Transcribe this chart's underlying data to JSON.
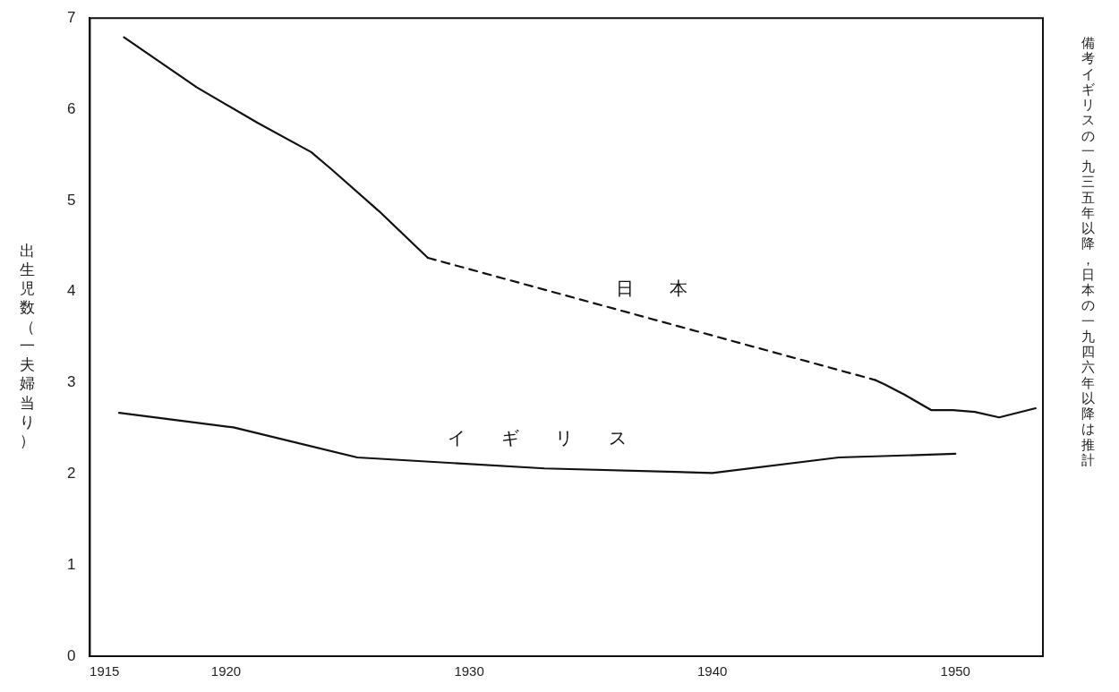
{
  "chart_data": {
    "type": "line",
    "ylabel": "出生児数（一夫婦当り）",
    "series": [
      {
        "color": "#111111",
        "line_style": "solid",
        "x": [
          1915.8,
          1918.8,
          1921.3,
          1923.5,
          1924.3,
          1926.3,
          1928.3
        ],
        "values": [
          6.79,
          6.24,
          5.85,
          5.53,
          5.35,
          4.88,
          4.37
        ]
      },
      {
        "name": "日本",
        "color": "#111111",
        "line_style": "dashed",
        "x": [
          1928.3,
          1946.7
        ],
        "values": [
          4.37,
          3.03
        ]
      },
      {
        "color": "#111111",
        "line_style": "solid",
        "x": [
          1946.7,
          1947.1,
          1947.9,
          1949.0,
          1949.9,
          1950.8,
          1951.8,
          1953.3
        ],
        "values": [
          3.03,
          2.98,
          2.87,
          2.7,
          2.7,
          2.68,
          2.62,
          2.72
        ]
      },
      {
        "name": "イギリス",
        "color": "#111111",
        "line_style": "solid",
        "x": [
          1915.6,
          1920.3,
          1925.4,
          1933.1,
          1940,
          1945.2,
          1950
        ],
        "values": [
          2.67,
          2.51,
          2.18,
          2.06,
          2.01,
          2.18,
          2.22
        ]
      }
    ],
    "annotations": [
      "備考イギリスの一九三五年以降，日本の一九四六年以降は推計"
    ],
    "xlim": [
      1914.4,
      1953.6
    ],
    "xticks": [
      1915,
      1920,
      1930,
      1940,
      1950
    ],
    "ylim": [
      0,
      7
    ],
    "yticks": [
      0,
      1,
      2,
      3,
      4,
      5,
      6,
      7
    ],
    "grid": false,
    "legend": false,
    "marker": "none"
  }
}
